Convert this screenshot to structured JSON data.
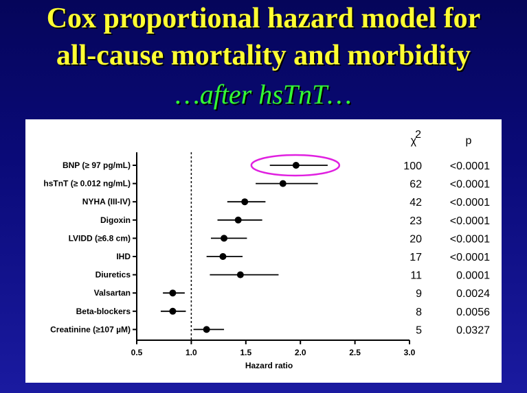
{
  "slide": {
    "title_line1": "Cox proportional hazard model for",
    "title_line2": "all-cause mortality and morbidity",
    "subtitle": "…after hsTnT…"
  },
  "colors": {
    "title": "#ffff33",
    "subtitle": "#33ff33",
    "highlight": "#e020e0"
  },
  "chart_data": {
    "type": "scatter",
    "subtype": "forest-plot",
    "xlabel": "Hazard ratio",
    "xlim": [
      0.5,
      3.0
    ],
    "xticks": [
      0.5,
      1.0,
      1.5,
      2.0,
      2.5,
      3.0
    ],
    "xtick_labels": [
      "0.5",
      "1.0",
      "1.5",
      "2.0",
      "2.5",
      "3.0"
    ],
    "reference_line": 1.0,
    "column_headers": {
      "chi2": "χ",
      "chi2_sup": "2",
      "p": "p"
    },
    "highlighted_row": 0,
    "rows": [
      {
        "label": "BNP (≥ 97 pg/mL)",
        "hr": 1.96,
        "lo": 1.72,
        "hi": 2.25,
        "chi2": "100",
        "p": "<0.0001"
      },
      {
        "label": "hsTnT (≥ 0.012 ng/mL)",
        "hr": 1.84,
        "lo": 1.59,
        "hi": 2.16,
        "chi2": "62",
        "p": "<0.0001"
      },
      {
        "label": "NYHA (III-IV)",
        "hr": 1.49,
        "lo": 1.33,
        "hi": 1.68,
        "chi2": "42",
        "p": "<0.0001"
      },
      {
        "label": "Digoxin",
        "hr": 1.43,
        "lo": 1.24,
        "hi": 1.65,
        "chi2": "23",
        "p": "<0.0001"
      },
      {
        "label": "LVIDD (≥6.8 cm)",
        "hr": 1.3,
        "lo": 1.18,
        "hi": 1.51,
        "chi2": "20",
        "p": "<0.0001"
      },
      {
        "label": "IHD",
        "hr": 1.29,
        "lo": 1.14,
        "hi": 1.47,
        "chi2": "17",
        "p": "<0.0001"
      },
      {
        "label": "Diuretics",
        "hr": 1.45,
        "lo": 1.17,
        "hi": 1.8,
        "chi2": "11",
        "p": "0.0001"
      },
      {
        "label": "Valsartan",
        "hr": 0.83,
        "lo": 0.74,
        "hi": 0.94,
        "chi2": "9",
        "p": "0.0024"
      },
      {
        "label": "Beta-blockers",
        "hr": 0.83,
        "lo": 0.72,
        "hi": 0.95,
        "chi2": "8",
        "p": "0.0056"
      },
      {
        "label": "Creatinine (≥107 µM)",
        "hr": 1.14,
        "lo": 1.02,
        "hi": 1.3,
        "chi2": "5",
        "p": "0.0327"
      }
    ]
  }
}
